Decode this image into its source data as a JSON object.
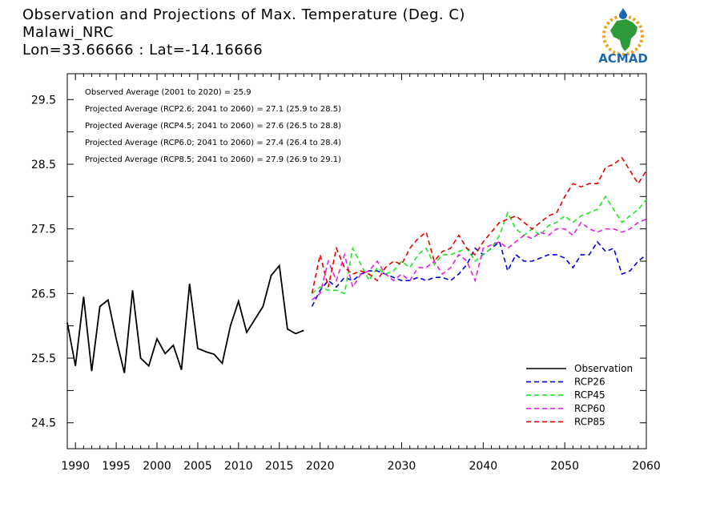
{
  "title_lines": [
    "Observation and Projections of Max. Temperature (Deg. C)",
    "Malawi_NRC",
    "Lon=33.66666 : Lat=-14.16666"
  ],
  "logo": {
    "text": "ACMAD"
  },
  "annotations": [
    "Observed Average (2001 to 2020) = 25.9",
    "Projected Average (RCP2.6; 2041 to 2060) = 27.1 (25.9 to 28.5)",
    "Projected Average (RCP4.5; 2041 to 2060) = 27.6 (26.5 to 28.8)",
    "Projected Average (RCP6.0; 2041 to 2060) = 27.4 (26.4 to 28.4)",
    "Projected Average (RCP8.5; 2041 to 2060) = 27.9 (26.9 to 29.1)"
  ],
  "chart_data": {
    "type": "line",
    "title": "Observation and Projections of Max. Temperature (Deg. C)",
    "xlim": [
      1989,
      2060
    ],
    "ylim": [
      24.1,
      29.9
    ],
    "x_ticks": [
      {
        "v": 1990,
        "label": "1990"
      },
      {
        "v": 1995,
        "label": "1995"
      },
      {
        "v": 2000,
        "label": "2000"
      },
      {
        "v": 2005,
        "label": "2005"
      },
      {
        "v": 2010,
        "label": "2010"
      },
      {
        "v": 2015,
        "label": "2015"
      },
      {
        "v": 2020,
        "label": "2020"
      },
      {
        "v": 2030,
        "label": "2030"
      },
      {
        "v": 2040,
        "label": "2040"
      },
      {
        "v": 2050,
        "label": "2050"
      },
      {
        "v": 2060,
        "label": "2060"
      }
    ],
    "y_ticks": [
      {
        "v": 24.5,
        "label": "24.5"
      },
      {
        "v": 25.0,
        "label": ""
      },
      {
        "v": 25.5,
        "label": "25.5"
      },
      {
        "v": 26.0,
        "label": ""
      },
      {
        "v": 26.5,
        "label": "26.5"
      },
      {
        "v": 27.0,
        "label": ""
      },
      {
        "v": 27.5,
        "label": "27.5"
      },
      {
        "v": 28.0,
        "label": ""
      },
      {
        "v": 28.5,
        "label": "28.5"
      },
      {
        "v": 29.0,
        "label": ""
      },
      {
        "v": 29.5,
        "label": "29.5"
      }
    ],
    "grid": false,
    "legend_position": "bottom-right",
    "series": [
      {
        "name": "Observation",
        "color": "#000000",
        "dashed": false,
        "x": [
          1989,
          1990,
          1991,
          1992,
          1993,
          1994,
          1995,
          1996,
          1997,
          1998,
          1999,
          2000,
          2001,
          2002,
          2003,
          2004,
          2005,
          2006,
          2007,
          2008,
          2009,
          2010,
          2011,
          2012,
          2013,
          2014,
          2015,
          2016,
          2017,
          2018,
          2019
        ],
        "y": [
          26.05,
          25.38,
          26.45,
          25.3,
          26.3,
          26.4,
          25.8,
          25.27,
          26.55,
          25.5,
          25.38,
          25.8,
          25.57,
          25.7,
          25.32,
          26.65,
          25.65,
          25.6,
          25.56,
          25.42,
          26.0,
          26.38,
          25.9,
          26.1,
          26.3,
          26.78,
          26.93,
          25.95,
          25.88,
          25.93,
          null
        ]
      },
      {
        "name": "RCP26",
        "color": "#0000e6",
        "dashed": true,
        "x": [
          2019,
          2020,
          2021,
          2022,
          2023,
          2024,
          2025,
          2026,
          2027,
          2028,
          2029,
          2030,
          2031,
          2032,
          2033,
          2034,
          2035,
          2036,
          2037,
          2038,
          2039,
          2040,
          2041,
          2042,
          2043,
          2044,
          2045,
          2046,
          2047,
          2048,
          2049,
          2050,
          2051,
          2052,
          2053,
          2054,
          2055,
          2056,
          2057,
          2058,
          2059,
          2060
        ],
        "y": [
          26.3,
          26.55,
          26.7,
          26.6,
          26.75,
          26.7,
          26.8,
          26.85,
          26.85,
          26.8,
          26.75,
          26.7,
          26.7,
          26.75,
          26.7,
          26.75,
          26.75,
          26.7,
          26.8,
          26.95,
          27.2,
          27.1,
          27.2,
          27.3,
          26.85,
          27.1,
          27.0,
          27.0,
          27.05,
          27.1,
          27.1,
          27.05,
          26.9,
          27.1,
          27.1,
          27.3,
          27.15,
          27.2,
          26.8,
          26.85,
          27.0,
          27.1
        ]
      },
      {
        "name": "RCP45",
        "color": "#1ee61e",
        "dashed": true,
        "x": [
          2019,
          2020,
          2021,
          2022,
          2023,
          2024,
          2025,
          2026,
          2027,
          2028,
          2029,
          2030,
          2031,
          2032,
          2033,
          2034,
          2035,
          2036,
          2037,
          2038,
          2039,
          2040,
          2041,
          2042,
          2043,
          2044,
          2045,
          2046,
          2047,
          2048,
          2049,
          2050,
          2051,
          2052,
          2053,
          2054,
          2055,
          2056,
          2057,
          2058,
          2059,
          2060
        ],
        "y": [
          26.5,
          26.6,
          26.55,
          26.55,
          26.5,
          27.2,
          26.95,
          26.7,
          26.9,
          26.8,
          26.85,
          27.0,
          26.9,
          27.1,
          27.2,
          26.95,
          27.1,
          27.1,
          27.15,
          27.2,
          27.0,
          27.1,
          27.2,
          27.4,
          27.75,
          27.5,
          27.4,
          27.5,
          27.4,
          27.55,
          27.6,
          27.7,
          27.6,
          27.7,
          27.75,
          27.8,
          28.0,
          27.8,
          27.6,
          27.7,
          27.8,
          27.95
        ]
      },
      {
        "name": "RCP60",
        "color": "#e61ee6",
        "dashed": true,
        "x": [
          2019,
          2020,
          2021,
          2022,
          2023,
          2024,
          2025,
          2026,
          2027,
          2028,
          2029,
          2030,
          2031,
          2032,
          2033,
          2034,
          2035,
          2036,
          2037,
          2038,
          2039,
          2040,
          2041,
          2042,
          2043,
          2044,
          2045,
          2046,
          2047,
          2048,
          2049,
          2050,
          2051,
          2052,
          2053,
          2054,
          2055,
          2056,
          2057,
          2058,
          2059,
          2060
        ],
        "y": [
          26.4,
          26.5,
          27.0,
          26.7,
          27.1,
          26.6,
          26.8,
          26.85,
          27.0,
          26.8,
          26.7,
          26.8,
          26.7,
          26.9,
          26.9,
          27.0,
          26.8,
          26.9,
          27.1,
          27.0,
          26.7,
          27.2,
          27.25,
          27.3,
          27.2,
          27.3,
          27.4,
          27.35,
          27.45,
          27.4,
          27.5,
          27.5,
          27.4,
          27.6,
          27.5,
          27.45,
          27.5,
          27.5,
          27.45,
          27.5,
          27.6,
          27.65
        ]
      },
      {
        "name": "RCP85",
        "color": "#e60000",
        "dashed": true,
        "x": [
          2019,
          2020,
          2021,
          2022,
          2023,
          2024,
          2025,
          2026,
          2027,
          2028,
          2029,
          2030,
          2031,
          2032,
          2033,
          2034,
          2035,
          2036,
          2037,
          2038,
          2039,
          2040,
          2041,
          2042,
          2043,
          2044,
          2045,
          2046,
          2047,
          2048,
          2049,
          2050,
          2051,
          2052,
          2053,
          2054,
          2055,
          2056,
          2057,
          2058,
          2059,
          2060
        ],
        "y": [
          26.5,
          27.1,
          26.6,
          27.2,
          26.9,
          26.8,
          26.85,
          26.8,
          26.7,
          26.9,
          27.0,
          26.95,
          27.2,
          27.35,
          27.45,
          27.0,
          27.15,
          27.2,
          27.4,
          27.2,
          27.1,
          27.3,
          27.45,
          27.6,
          27.65,
          27.7,
          27.6,
          27.5,
          27.6,
          27.7,
          27.75,
          28.0,
          28.2,
          28.15,
          28.2,
          28.2,
          28.45,
          28.5,
          28.6,
          28.4,
          28.2,
          28.4
        ]
      }
    ]
  }
}
